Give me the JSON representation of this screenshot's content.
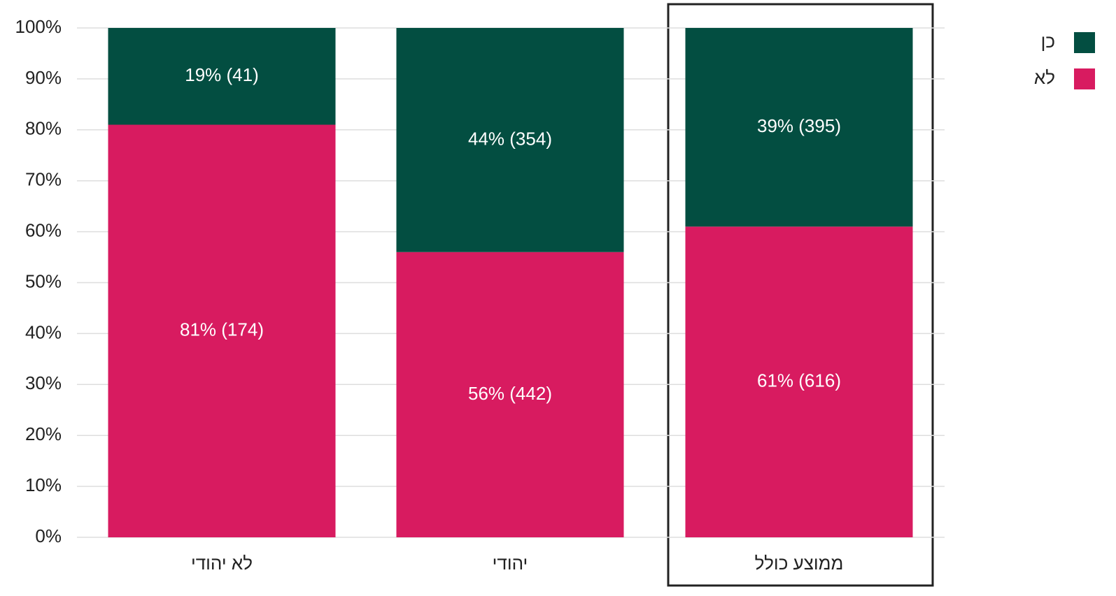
{
  "chart_data": {
    "type": "stacked_bar",
    "categories": [
      "לא יהודי",
      "יהודי",
      "ממוצע כולל"
    ],
    "series": [
      {
        "name": "כן",
        "color": "#034e41",
        "values": [
          19,
          44,
          39
        ],
        "value_labels": [
          "19% (41)",
          "44% (354)",
          "39% (395)"
        ]
      },
      {
        "name": "לא",
        "color": "#d81b60",
        "values": [
          81,
          56,
          61
        ],
        "value_labels": [
          "81% (174)",
          "56% (442)",
          "61% (616)"
        ]
      }
    ],
    "ylim": [
      0,
      100
    ],
    "yticks": [
      {
        "value": 0,
        "label": "0%"
      },
      {
        "value": 10,
        "label": "10%"
      },
      {
        "value": 20,
        "label": "20%"
      },
      {
        "value": 30,
        "label": "30%"
      },
      {
        "value": 40,
        "label": "40%"
      },
      {
        "value": 50,
        "label": "50%"
      },
      {
        "value": 60,
        "label": "60%"
      },
      {
        "value": 70,
        "label": "70%"
      },
      {
        "value": 80,
        "label": "80%"
      },
      {
        "value": 90,
        "label": "90%"
      },
      {
        "value": 100,
        "label": "100%"
      }
    ],
    "grid": true,
    "legend": "top-right"
  }
}
